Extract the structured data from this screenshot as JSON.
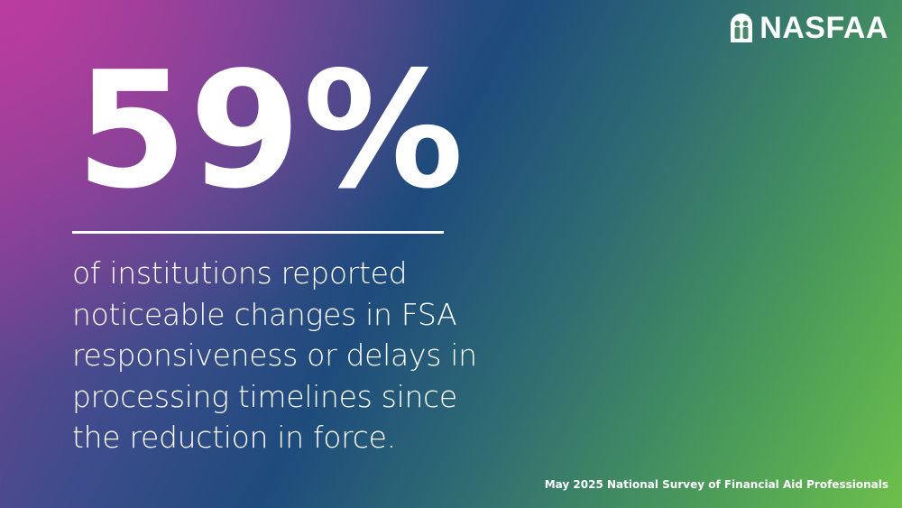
{
  "logo": {
    "text": "NASFAA"
  },
  "headline": "59%",
  "description": {
    "lines": [
      "of institutions reported",
      "noticeable changes in FSA",
      "responsiveness or delays in",
      "processing timelines since",
      "the reduction in force."
    ]
  },
  "footer": {
    "source": "May 2025 National Survey of Financial Aid Professionals"
  }
}
